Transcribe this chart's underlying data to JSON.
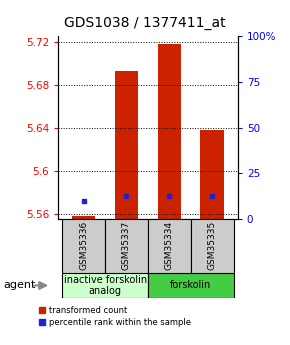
{
  "title": "GDS1038 / 1377411_at",
  "samples": [
    "GSM35336",
    "GSM35337",
    "GSM35334",
    "GSM35335"
  ],
  "bar_values": [
    5.558,
    5.693,
    5.718,
    5.638
  ],
  "blue_dot_values": [
    5.572,
    5.576,
    5.576,
    5.576
  ],
  "ylim_min": 5.555,
  "ylim_max": 5.725,
  "yticks_left": [
    5.56,
    5.6,
    5.64,
    5.68,
    5.72
  ],
  "yticks_right": [
    0,
    25,
    50,
    75,
    100
  ],
  "bar_color": "#cc2200",
  "blue_color": "#2222cc",
  "bar_width": 0.55,
  "groups": [
    {
      "label": "inactive forskolin\nanalog",
      "samples": [
        0,
        1
      ],
      "color": "#ccffcc"
    },
    {
      "label": "forskolin",
      "samples": [
        2,
        3
      ],
      "color": "#44cc44"
    }
  ],
  "agent_label": "agent",
  "legend_red": "transformed count",
  "legend_blue": "percentile rank within the sample",
  "title_fontsize": 10,
  "tick_fontsize": 7.5,
  "sample_fontsize": 6.5,
  "group_fontsize": 7
}
